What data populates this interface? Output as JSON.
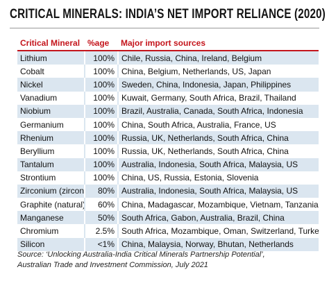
{
  "title": "CRITICAL MINERALS: INDIA’S NET IMPORT RELIANCE (2020)",
  "table": {
    "header": [
      "Critical Mineral",
      "%age",
      "Major import sources"
    ],
    "rows": [
      [
        "Lithium",
        "100%",
        "Chile, Russia, China, Ireland, Belgium"
      ],
      [
        "Cobalt",
        "100%",
        "China, Belgium, Netherlands, US, Japan"
      ],
      [
        "Nickel",
        "100%",
        "Sweden, China, Indonesia, Japan, Philippines"
      ],
      [
        "Vanadium",
        "100%",
        "Kuwait, Germany, South Africa, Brazil, Thailand"
      ],
      [
        "Niobium",
        "100%",
        "Brazil, Australia, Canada, South Africa, Indonesia"
      ],
      [
        "Germanium",
        "100%",
        "China, South Africa, Australia, France, US"
      ],
      [
        "Rhenium",
        "100%",
        "Russia, UK, Netherlands, South Africa, China"
      ],
      [
        "Beryllium",
        "100%",
        "Russia, UK, Netherlands, South Africa, China"
      ],
      [
        "Tantalum",
        "100%",
        "Australia, Indonesia, South Africa, Malaysia, US"
      ],
      [
        "Strontium",
        "100%",
        "China, US, Russia, Estonia, Slovenia"
      ],
      [
        "Zirconium (zircon)",
        "80%",
        "Australia, Indonesia, South Africa, Malaysia, US"
      ],
      [
        "Graphite (natural)",
        "60%",
        "China, Madagascar, Mozambique, Vietnam, Tanzania"
      ],
      [
        "Manganese",
        "50%",
        "South Africa, Gabon, Australia, Brazil, China"
      ],
      [
        "Chromium",
        "2.5%",
        "South Africa, Mozambique, Oman, Switzerland, Turkey"
      ],
      [
        "Silicon",
        "<1%",
        "China, Malaysia, Norway, Bhutan, Netherlands"
      ]
    ]
  },
  "source": "Source: ‘Unlocking Australia-India Critical Minerals Partnership Potential’, Australian Trade and Investment Commission, July 2021"
}
